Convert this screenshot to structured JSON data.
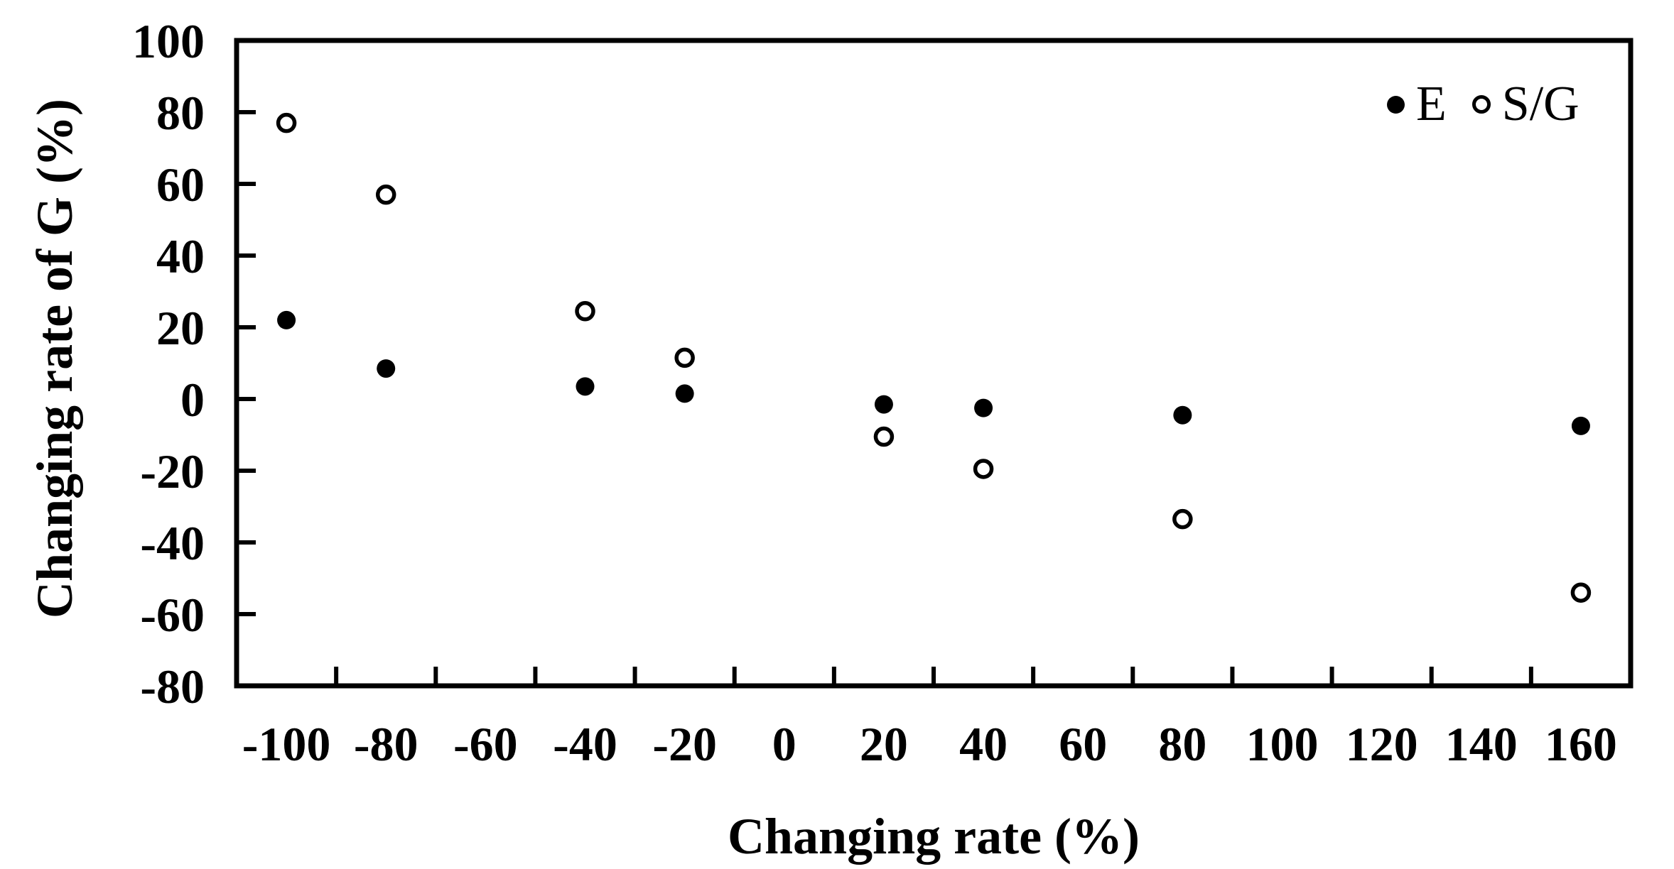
{
  "chart_data": {
    "type": "scatter",
    "title": "",
    "xlabel": "Changing rate (%)",
    "ylabel": "Changing rate of G (%)",
    "grid": false,
    "colors": {
      "foreground": "#000000",
      "background": "#ffffff"
    },
    "x_axis": {
      "min": -110,
      "max": 170,
      "tick_labels": [
        -100,
        -80,
        -60,
        -40,
        -20,
        0,
        20,
        40,
        60,
        80,
        100,
        120,
        140,
        160
      ],
      "tick_marks": [
        -90,
        -70,
        -50,
        -30,
        -10,
        10,
        30,
        50,
        70,
        90,
        110,
        130,
        150
      ]
    },
    "y_axis": {
      "min": -80,
      "max": 100,
      "tick_labels": [
        100,
        80,
        60,
        40,
        20,
        0,
        -20,
        -40,
        -60,
        -80
      ],
      "tick_marks": [
        80,
        60,
        40,
        20,
        0,
        -20,
        -40,
        -60
      ]
    },
    "series": [
      {
        "name": "E",
        "marker": "filled-circle",
        "points": [
          [
            -100,
            22
          ],
          [
            -80,
            8.5
          ],
          [
            -40,
            3.5
          ],
          [
            -20,
            1.5
          ],
          [
            20,
            -1.5
          ],
          [
            40,
            -2.5
          ],
          [
            80,
            -4.5
          ],
          [
            160,
            -7.5
          ]
        ]
      },
      {
        "name": "S/G",
        "marker": "open-circle",
        "points": [
          [
            -100,
            77
          ],
          [
            -80,
            57
          ],
          [
            -40,
            24.5
          ],
          [
            -20,
            11.5
          ],
          [
            20,
            -10.5
          ],
          [
            40,
            -19.5
          ],
          [
            80,
            -33.5
          ],
          [
            160,
            -54
          ]
        ]
      }
    ],
    "legend": {
      "position": "top-right-inside"
    }
  }
}
